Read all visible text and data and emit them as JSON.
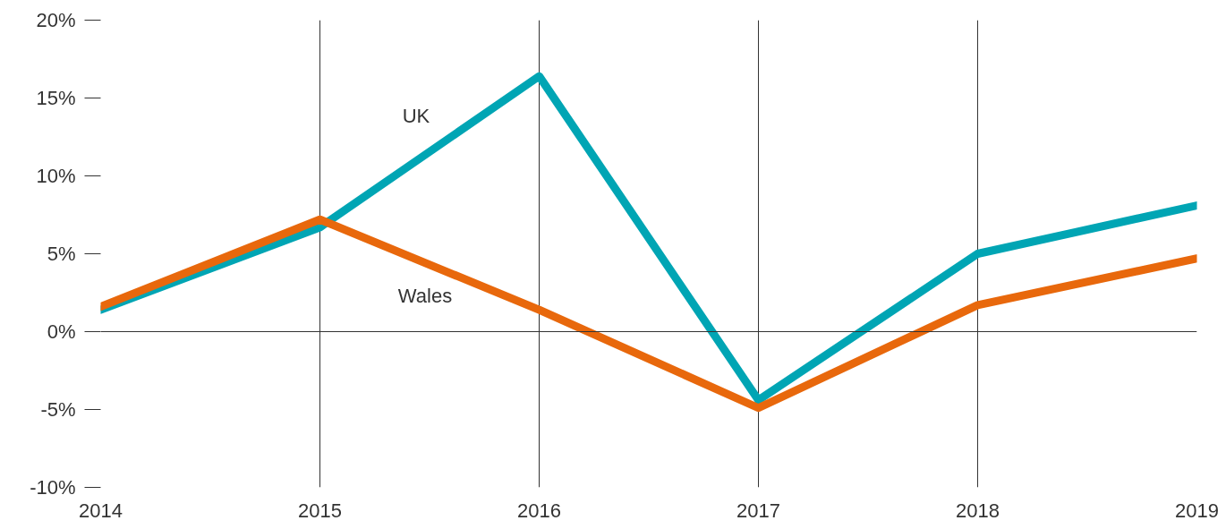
{
  "chart_data": {
    "type": "line",
    "x": [
      2014,
      2015,
      2016,
      2017,
      2018,
      2019
    ],
    "series": [
      {
        "name": "UK",
        "color": "#00a5b4",
        "values": [
          1.4,
          6.7,
          16.4,
          -4.4,
          5.0,
          8.1
        ]
      },
      {
        "name": "Wales",
        "color": "#e8680c",
        "values": [
          1.6,
          7.2,
          1.4,
          -4.9,
          1.7,
          4.7
        ]
      }
    ],
    "xlim": [
      2014,
      2019
    ],
    "xticks": [
      2014,
      2015,
      2016,
      2017,
      2018,
      2019
    ],
    "ylim": [
      -10,
      20
    ],
    "yticks": [
      {
        "value": -10,
        "label": "-10%"
      },
      {
        "value": -5,
        "label": "-5%"
      },
      {
        "value": 0,
        "label": "0%"
      },
      {
        "value": 5,
        "label": "5%"
      },
      {
        "value": 10,
        "label": "10%"
      },
      {
        "value": 15,
        "label": "15%"
      },
      {
        "value": 20,
        "label": "20%"
      }
    ],
    "ref_lines": [
      {
        "axis": "y",
        "value": 0,
        "color": "#333333"
      }
    ],
    "grid": "x",
    "legend": false,
    "marker": "none",
    "line_style": "solid"
  }
}
